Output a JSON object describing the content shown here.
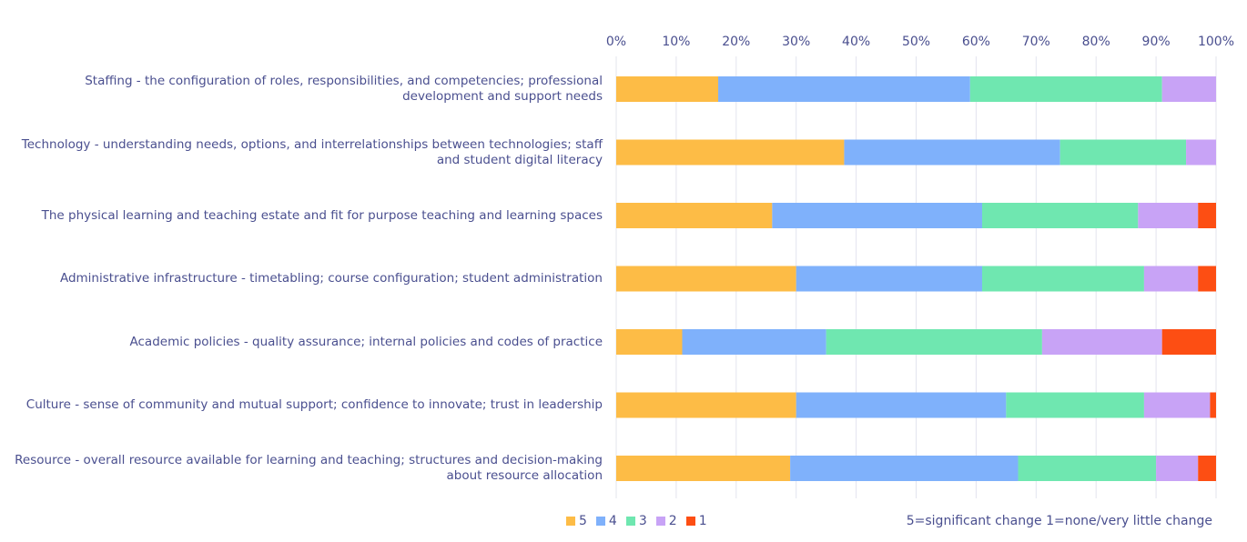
{
  "chart_data": {
    "type": "bar",
    "orientation": "horizontal",
    "stacked": "percent",
    "categories": [
      "Staffing - the configuration of roles, responsibilities, and competencies; professional development and support needs",
      "Technology - understanding needs, options, and interrelationships between technologies; staff and student digital literacy",
      "The physical  learning and teaching estate and fit for purpose teaching and learning spaces",
      "Administrative infrastructure - timetabling; course configuration; student administration",
      "Academic policies - quality assurance; internal policies and codes of practice",
      "Culture - sense of community and mutual support; confidence to innovate; trust in leadership",
      "Resource - overall resource available for learning and teaching; structures and decision-making about resource allocation"
    ],
    "series": [
      {
        "name": "5",
        "color": "#fdbc46",
        "values": [
          17,
          38,
          26,
          30,
          11,
          30,
          29
        ]
      },
      {
        "name": "4",
        "color": "#7fb1fb",
        "values": [
          42,
          36,
          35,
          31,
          24,
          35,
          38
        ]
      },
      {
        "name": "3",
        "color": "#6fe7b0",
        "values": [
          32,
          21,
          26,
          27,
          36,
          23,
          23
        ]
      },
      {
        "name": "2",
        "color": "#c8a3f6",
        "values": [
          9,
          5,
          10,
          9,
          20,
          11,
          7
        ]
      },
      {
        "name": "1",
        "color": "#fd4e13",
        "values": [
          0,
          0,
          3,
          3,
          9,
          1,
          3
        ]
      }
    ],
    "x_ticks": [
      "0%",
      "10%",
      "20%",
      "30%",
      "40%",
      "50%",
      "60%",
      "70%",
      "80%",
      "90%",
      "100%"
    ],
    "xlim": [
      0,
      100
    ],
    "grid": "vertical",
    "legend_position": "bottom",
    "note": "5=significant change 1=none/very little change"
  }
}
